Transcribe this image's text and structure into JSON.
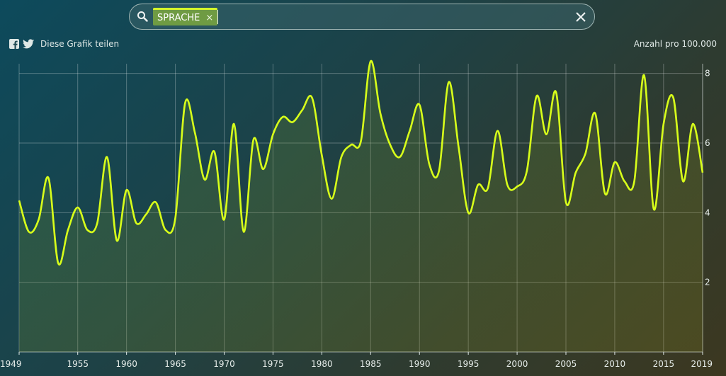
{
  "search": {
    "tag_label": "SPRACHE",
    "tag_remove": "×",
    "value": "",
    "placeholder": ""
  },
  "share": {
    "label": "Diese Grafik teilen",
    "icons": [
      "facebook-icon",
      "twitter-icon"
    ]
  },
  "icons": {
    "search": "search-icon",
    "clear": "close-icon"
  },
  "colors": {
    "line": "#d8ff1a",
    "tag": "#6f9b43",
    "tag_accent": "#d4f52b"
  },
  "chart_data": {
    "type": "area",
    "title": "",
    "xlabel": "",
    "ylabel": "Anzahl pro 100.000",
    "xlim": [
      1949,
      2019
    ],
    "ylim": [
      0,
      8.4
    ],
    "x_ticks": [
      1949,
      1955,
      1960,
      1965,
      1970,
      1975,
      1980,
      1985,
      1990,
      1995,
      2000,
      2005,
      2010,
      2015,
      2019
    ],
    "y_ticks": [
      2,
      4,
      6,
      8
    ],
    "grid": true,
    "x": [
      1949,
      1950,
      1951,
      1952,
      1953,
      1954,
      1955,
      1956,
      1957,
      1958,
      1959,
      1960,
      1961,
      1962,
      1963,
      1964,
      1965,
      1966,
      1967,
      1968,
      1969,
      1970,
      1971,
      1972,
      1973,
      1974,
      1975,
      1976,
      1977,
      1978,
      1979,
      1980,
      1981,
      1982,
      1983,
      1984,
      1985,
      1986,
      1987,
      1988,
      1989,
      1990,
      1991,
      1992,
      1993,
      1994,
      1995,
      1996,
      1997,
      1998,
      1999,
      2000,
      2001,
      2002,
      2003,
      2004,
      2005,
      2006,
      2007,
      2008,
      2009,
      2010,
      2011,
      2012,
      2013,
      2014,
      2015,
      2016,
      2017,
      2018,
      2019
    ],
    "series": [
      {
        "values": [
          4.35,
          3.45,
          3.8,
          5.0,
          2.55,
          3.5,
          4.15,
          3.5,
          3.7,
          5.6,
          3.2,
          4.65,
          3.7,
          3.95,
          4.3,
          3.5,
          3.85,
          7.15,
          6.3,
          4.95,
          5.75,
          3.8,
          6.55,
          3.45,
          6.1,
          5.25,
          6.25,
          6.75,
          6.6,
          6.95,
          7.3,
          5.65,
          4.4,
          5.6,
          5.95,
          6.05,
          8.35,
          6.85,
          5.95,
          5.6,
          6.35,
          7.1,
          5.4,
          5.2,
          7.75,
          5.9,
          4.0,
          4.8,
          4.7,
          6.35,
          4.8,
          4.75,
          5.2,
          7.35,
          6.25,
          7.45,
          4.3,
          5.15,
          5.7,
          6.85,
          4.55,
          5.45,
          4.9,
          4.9,
          7.95,
          4.1,
          6.55,
          7.3,
          4.9,
          6.55,
          5.15
        ]
      }
    ]
  }
}
